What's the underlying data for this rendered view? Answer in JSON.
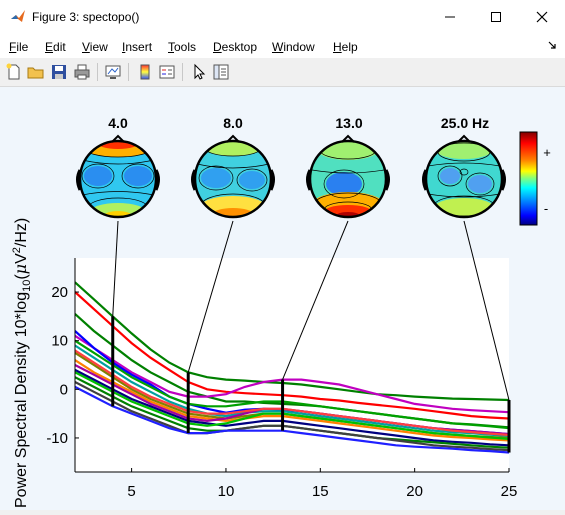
{
  "window": {
    "title": "Figure 3: spectopo()",
    "icon": "matlab-icon",
    "controls": [
      "minimize-icon",
      "maximize-icon",
      "close-icon"
    ]
  },
  "menu": {
    "items": [
      {
        "label": "File",
        "u": "F",
        "rest": "ile"
      },
      {
        "label": "Edit",
        "u": "E",
        "rest": "dit"
      },
      {
        "label": "View",
        "u": "V",
        "rest": "iew"
      },
      {
        "label": "Insert",
        "u": "I",
        "rest": "nsert"
      },
      {
        "label": "Tools",
        "u": "T",
        "rest": "ools"
      },
      {
        "label": "Desktop",
        "u": "D",
        "rest": "esktop"
      },
      {
        "label": "Window",
        "u": "W",
        "rest": "indow"
      },
      {
        "label": "Help",
        "u": "H",
        "rest": "elp"
      }
    ],
    "dock_icon": "dock-arrow-icon"
  },
  "toolbar": {
    "icons": [
      "new-figure-icon",
      "open-icon",
      "save-icon",
      "print-icon",
      "link-plot-icon",
      "colorbar-icon",
      "legend-icon",
      "pointer-icon",
      "property-editor-icon"
    ]
  },
  "topomaps": {
    "freq_labels": [
      "4.0",
      "8.0",
      "13.0",
      "25.0 Hz"
    ],
    "freqs": [
      4,
      8,
      13,
      25
    ]
  },
  "colorbar": {
    "plus_label": "+",
    "minus_label": "-",
    "colors": [
      "#800000",
      "#ff0000",
      "#ff8000",
      "#ffff00",
      "#80ff80",
      "#00ffff",
      "#0080ff",
      "#0000ff",
      "#000080"
    ]
  },
  "chart_data": {
    "type": "line",
    "ylabel_main": "Power Spectral Density 10*log",
    "ylabel_sub": "10",
    "ylabel_paren": "(",
    "ylabel_mu": "μ",
    "ylabel_v": "V",
    "ylabel_sup": "2",
    "ylabel_end": "/Hz)",
    "xlim": [
      2,
      25
    ],
    "ylim": [
      -17,
      27
    ],
    "x_ticks": [
      5,
      10,
      15,
      20,
      25
    ],
    "x_tick_labels": [
      "5",
      "10",
      "15",
      "20",
      "25"
    ],
    "y_ticks": [
      20,
      10,
      0,
      -10
    ],
    "y_tick_labels": [
      "20",
      "10",
      "0",
      "-10"
    ],
    "x": [
      2,
      3,
      4,
      5,
      6,
      7,
      8,
      9,
      10,
      11,
      12,
      13,
      14,
      15,
      16,
      17,
      18,
      19,
      20,
      21,
      22,
      23,
      24,
      25
    ],
    "series": [
      {
        "color": "#008000",
        "values": [
          22,
          18.5,
          15,
          11.5,
          8.2,
          5.5,
          3.5,
          2.5,
          2,
          1.8,
          1.5,
          1.3,
          1,
          0.5,
          0,
          -0.5,
          -1,
          -1.2,
          -1.5,
          -1.7,
          -1.9,
          -2,
          -2.1,
          -2.2
        ]
      },
      {
        "color": "#ff0000",
        "values": [
          20,
          16.5,
          13,
          9.5,
          6.5,
          4,
          1.5,
          0,
          -0.5,
          -0.8,
          -1,
          -1.2,
          -1.5,
          -2,
          -2.3,
          -2.8,
          -3.2,
          -3.6,
          -4,
          -4.5,
          -5,
          -5.5,
          -5.8,
          -6
        ]
      },
      {
        "color": "#008000",
        "values": [
          15.5,
          12,
          9,
          6,
          3.5,
          1.5,
          -0.5,
          -1.5,
          -2.5,
          -2.5,
          -2.8,
          -3,
          -3.2,
          -3.5,
          -4,
          -4.5,
          -5,
          -5.5,
          -6,
          -6.5,
          -7,
          -7.2,
          -7.5,
          -7.8
        ]
      },
      {
        "color": "#c000c0",
        "values": [
          11,
          8.5,
          6,
          3.5,
          1.5,
          -0.5,
          -1.5,
          -1.5,
          -1,
          0.5,
          1.5,
          2,
          2,
          1.5,
          1,
          0,
          -1,
          -2,
          -3,
          -3.5,
          -4,
          -4.3,
          -4.5,
          -4.7
        ]
      },
      {
        "color": "#0000ff",
        "values": [
          12,
          8.5,
          5.5,
          3,
          1,
          -1.5,
          -3,
          -4,
          -4.8,
          -4.2,
          -4,
          -4.2,
          -4.5,
          -5,
          -5.5,
          -6,
          -6.5,
          -7,
          -7.5,
          -8,
          -8.3,
          -8.6,
          -8.9,
          -9.2
        ]
      },
      {
        "color": "#00a0a0",
        "values": [
          9,
          6.5,
          4,
          1.5,
          -0.5,
          -2.5,
          -4,
          -5,
          -5.5,
          -4.8,
          -4.5,
          -4.5,
          -5,
          -5.5,
          -6,
          -6.5,
          -7,
          -7.5,
          -8,
          -8.5,
          -8.8,
          -9,
          -9.3,
          -9.6
        ]
      },
      {
        "color": "#808000",
        "values": [
          7.5,
          5,
          2.5,
          0,
          -2,
          -3.5,
          -5,
          -5.5,
          -6,
          -5.5,
          -5,
          -5,
          -5.5,
          -6,
          -6.5,
          -7,
          -7.5,
          -8,
          -8.5,
          -9,
          -9.3,
          -9.6,
          -9.8,
          -10
        ]
      },
      {
        "color": "#ff8000",
        "values": [
          6,
          3.5,
          1.5,
          -0.5,
          -2.5,
          -4,
          -5.5,
          -6,
          -6.5,
          -6,
          -5.5,
          -5.5,
          -6,
          -6.5,
          -7,
          -7.5,
          -8,
          -8.5,
          -9,
          -9.5,
          -9.8,
          -10,
          -10.3,
          -10.5
        ]
      },
      {
        "color": "#000080",
        "values": [
          4,
          2,
          0,
          -2,
          -3.5,
          -5,
          -6.5,
          -7,
          -7.5,
          -7,
          -6.5,
          -6.5,
          -7,
          -7.5,
          -8,
          -8.5,
          -9,
          -9.5,
          -10,
          -10.5,
          -10.8,
          -11,
          -11.3,
          -11.5
        ]
      },
      {
        "color": "#008000",
        "values": [
          2.5,
          0.5,
          -1.5,
          -3.5,
          -5,
          -6.5,
          -8,
          -8.5,
          -8.5,
          -8,
          -7.5,
          -7.5,
          -8,
          -8.5,
          -9,
          -9.5,
          -10,
          -10.3,
          -10.6,
          -10.9,
          -11.2,
          -11.5,
          -11.8,
          -12
        ]
      },
      {
        "color": "#a000a0",
        "values": [
          5,
          3,
          1,
          -1,
          -3,
          -4.5,
          -6,
          -6.5,
          -6,
          -5,
          -4,
          -4,
          -4.5,
          -5,
          -5.5,
          -6,
          -6.5,
          -7,
          -7.5,
          -8,
          -8.3,
          -8.6,
          -8.9,
          -9.2
        ]
      },
      {
        "color": "#00c000",
        "values": [
          3.5,
          1.5,
          -0.5,
          -2.5,
          -4,
          -5.5,
          -7,
          -7.5,
          -7,
          -6,
          -5,
          -5,
          -5.5,
          -6,
          -6.5,
          -7,
          -7.5,
          -8,
          -8.5,
          -9,
          -9.3,
          -9.6,
          -9.9,
          -10.2
        ]
      },
      {
        "color": "#ff4040",
        "values": [
          8,
          5.5,
          3,
          0.5,
          -1.5,
          -3,
          -4.5,
          -5,
          -5,
          -4.5,
          -4,
          -4,
          -4.5,
          -5,
          -5.5,
          -6,
          -6.5,
          -7,
          -7.5,
          -8,
          -8.5,
          -8.8,
          -9.1,
          -9.4
        ]
      },
      {
        "color": "#404040",
        "values": [
          1.5,
          -0.5,
          -2.5,
          -4.5,
          -6,
          -7.5,
          -9,
          -9,
          -8.5,
          -8,
          -7.5,
          -7.5,
          -8,
          -8.5,
          -9,
          -9.5,
          -10,
          -10.5,
          -11,
          -11.5,
          -11.8,
          -12,
          -12.3,
          -12.5
        ]
      },
      {
        "color": "#2020ff",
        "values": [
          0.5,
          -1.5,
          -3.5,
          -5,
          -6.5,
          -8,
          -9,
          -9,
          -8.5,
          -8.5,
          -8.5,
          -8.5,
          -9,
          -9.5,
          -10,
          -10.5,
          -11,
          -11.5,
          -11.8,
          -12,
          -12.2,
          -12.5,
          -12.7,
          -13
        ]
      },
      {
        "color": "#00a000",
        "values": [
          10,
          7.5,
          5,
          2.5,
          0.5,
          -1.5,
          -3,
          -3.5,
          -3.5,
          -3,
          -2.5,
          -2.5,
          -3,
          -3.5,
          -4,
          -4.5,
          -5,
          -5.5,
          -6,
          -6.5,
          -7,
          -7.3,
          -7.6,
          -8
        ]
      }
    ]
  }
}
